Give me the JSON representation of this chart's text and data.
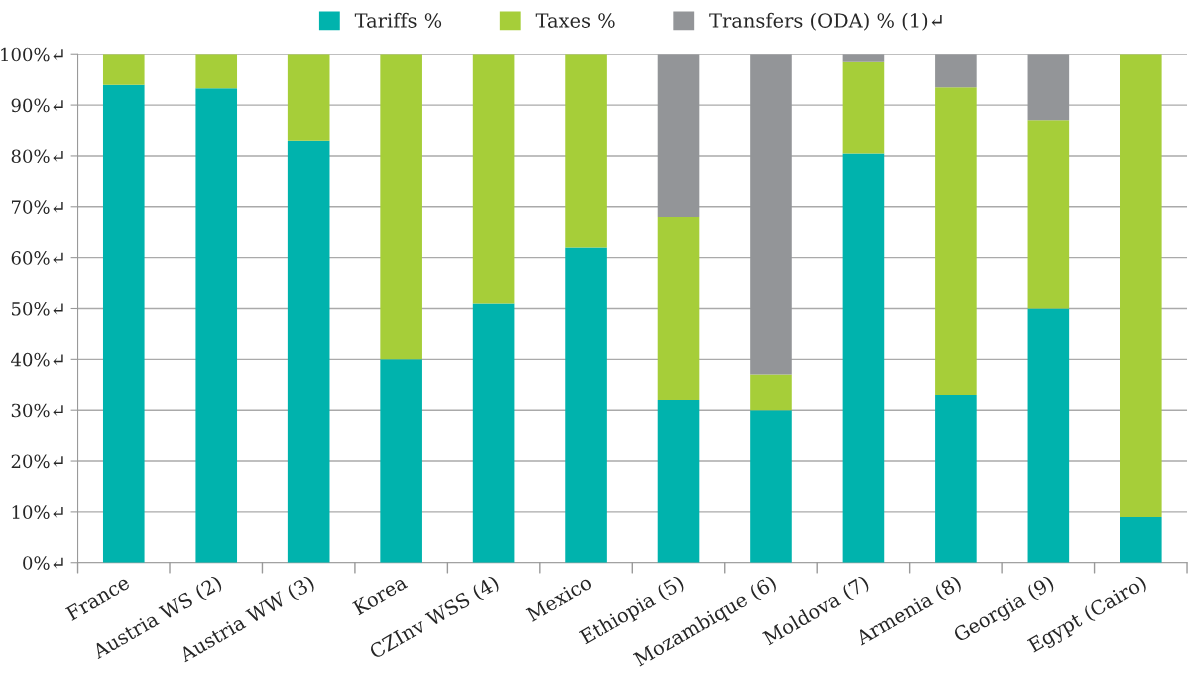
{
  "chart_data": {
    "type": "bar",
    "stacked": true,
    "categories": [
      "France",
      "Austria WS (2)",
      "Austria WW (3)",
      "Korea",
      "CZInv WSS (4)",
      "Mexico",
      "Ethiopia (5)",
      "Mozambique (6)",
      "Moldova (7)",
      "Armenia (8)",
      "Georgia (9)",
      "Egypt (Cairo)"
    ],
    "series": [
      {
        "name": "Tariffs %",
        "color": "#00b3ad",
        "values": [
          94,
          93.3,
          83,
          40,
          51,
          62,
          32,
          30,
          80.5,
          33,
          50,
          9
        ]
      },
      {
        "name": "Taxes %",
        "color": "#a6ce39",
        "values": [
          6,
          6.7,
          17,
          60,
          49,
          38,
          36,
          7,
          18,
          60.5,
          37,
          91
        ]
      },
      {
        "name": "Transfers (ODA) % (1)↵",
        "color": "#939598",
        "values": [
          null,
          null,
          null,
          null,
          null,
          null,
          32,
          63,
          1.5,
          6.5,
          13,
          null
        ]
      }
    ],
    "ylim": [
      0,
      100
    ],
    "yticks": [
      {
        "value": 0,
        "label": "0%↵"
      },
      {
        "value": 10,
        "label": "10%↵"
      },
      {
        "value": 20,
        "label": "20%↵"
      },
      {
        "value": 30,
        "label": "30%↵"
      },
      {
        "value": 40,
        "label": "40%↵"
      },
      {
        "value": 50,
        "label": "50%↵"
      },
      {
        "value": 60,
        "label": "60%↵"
      },
      {
        "value": 70,
        "label": "70%↵"
      },
      {
        "value": 80,
        "label": "80%↵"
      },
      {
        "value": 90,
        "label": "90%↵"
      },
      {
        "value": 100,
        "label": "100%↵"
      }
    ],
    "grid": "y",
    "legend": "top"
  }
}
